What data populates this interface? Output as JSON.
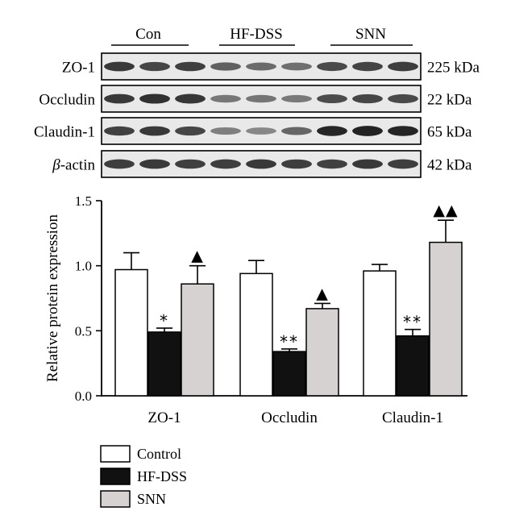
{
  "blot": {
    "groups": [
      "Con",
      "HF-DSS",
      "SNN"
    ],
    "rows": [
      {
        "label": "ZO-1",
        "size": "225 kDa",
        "intensity": [
          0.8,
          0.72,
          0.76,
          0.55,
          0.48,
          0.45,
          0.7,
          0.74,
          0.78
        ]
      },
      {
        "label": "Occludin",
        "size": "22 kDa",
        "intensity": [
          0.8,
          0.85,
          0.82,
          0.4,
          0.42,
          0.38,
          0.68,
          0.72,
          0.7
        ]
      },
      {
        "label": "Claudin-1",
        "size": "65 kDa",
        "intensity": [
          0.75,
          0.8,
          0.72,
          0.35,
          0.3,
          0.5,
          0.92,
          0.95,
          0.93
        ]
      },
      {
        "label_greek": "β",
        "label_rest": "-actin",
        "size": "42 kDa",
        "intensity": [
          0.78,
          0.8,
          0.76,
          0.78,
          0.8,
          0.77,
          0.75,
          0.8,
          0.78
        ]
      }
    ],
    "colors": {
      "band": "#1a1a1a",
      "background": "#e9e9e9",
      "frame": "#000000"
    }
  },
  "chart_data": {
    "type": "bar",
    "categories": [
      "ZO-1",
      "Occludin",
      "Claudin-1"
    ],
    "ylabel": "Relative protein expression",
    "ylim": [
      0,
      1.5
    ],
    "yticks": [
      "0.0",
      "0.5",
      "1.0",
      "1.5"
    ],
    "series": [
      {
        "name": "Control",
        "color": "#ffffff",
        "values": [
          0.97,
          0.94,
          0.96
        ],
        "errors": [
          0.13,
          0.1,
          0.05
        ],
        "marks": [
          "",
          "",
          ""
        ]
      },
      {
        "name": "HF-DSS",
        "color": "#111111",
        "values": [
          0.49,
          0.34,
          0.46
        ],
        "errors": [
          0.03,
          0.02,
          0.05
        ],
        "marks": [
          "*",
          "**",
          "**"
        ]
      },
      {
        "name": "SNN",
        "color": "#d6d2d2",
        "values": [
          0.86,
          0.67,
          1.18
        ],
        "errors": [
          0.14,
          0.04,
          0.17
        ],
        "marks": [
          "▲",
          "▲",
          "▲▲"
        ]
      }
    ],
    "legend_position": "bottom-left",
    "grid": false
  }
}
